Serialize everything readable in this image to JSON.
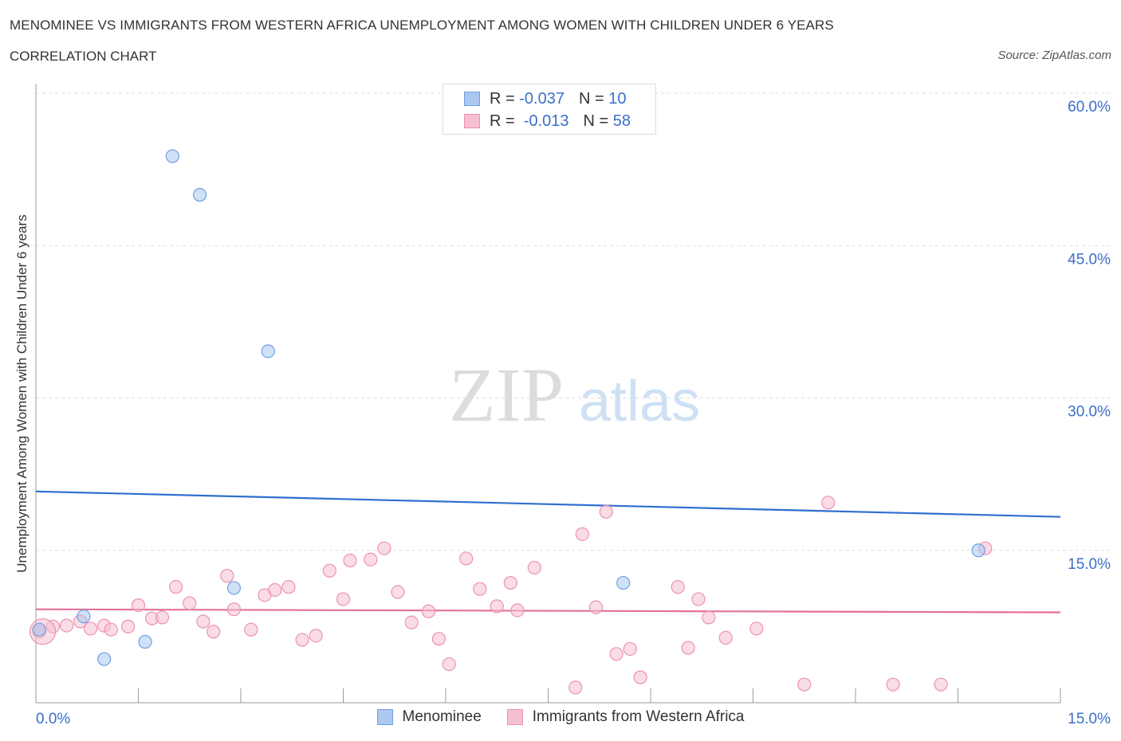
{
  "header": {
    "title": "MENOMINEE VS IMMIGRANTS FROM WESTERN AFRICA UNEMPLOYMENT AMONG WOMEN WITH CHILDREN UNDER 6 YEARS",
    "subtitle": "CORRELATION CHART",
    "source": "Source: ZipAtlas.com"
  },
  "watermark": {
    "zip": "ZIP",
    "atlas": "atlas"
  },
  "legend": {
    "rows": [
      {
        "r_label": "R =",
        "r_value": "-0.037",
        "n_label": "N =",
        "n_value": "10"
      },
      {
        "r_label": "R =",
        "r_value": "-0.013",
        "n_label": "N =",
        "n_value": "58"
      }
    ]
  },
  "colors": {
    "menominee_fill": "#aac8f0",
    "menominee_stroke": "#6f9fe0",
    "menominee_line": "#2f6fd0",
    "immigrants_fill": "#f6bfd0",
    "immigrants_stroke": "#eb93b0",
    "immigrants_line": "#e3709a",
    "axis_label_blue": "#3b6fc9"
  },
  "chart_data": {
    "type": "scatter",
    "title": "MENOMINEE VS IMMIGRANTS FROM WESTERN AFRICA UNEMPLOYMENT AMONG WOMEN WITH CHILDREN UNDER 6 YEARS",
    "subtitle": "CORRELATION CHART",
    "xlabel": "",
    "ylabel": "Unemployment Among Women with Children Under 6 years",
    "xlim": [
      0,
      15
    ],
    "ylim": [
      0,
      60
    ],
    "x_tick_labels": [
      "0.0%",
      "15.0%"
    ],
    "y_tick_values": [
      15,
      30,
      45,
      60
    ],
    "y_tick_labels": [
      "15.0%",
      "30.0%",
      "45.0%",
      "60.0%"
    ],
    "grid": true,
    "legend_position": "bottom-center",
    "series": [
      {
        "name": "Menominee",
        "r": -0.037,
        "n": 10,
        "points": [
          [
            0.05,
            7.2
          ],
          [
            0.7,
            8.5
          ],
          [
            1.0,
            4.3
          ],
          [
            1.6,
            6.0
          ],
          [
            2.0,
            53.8
          ],
          [
            2.4,
            50.0
          ],
          [
            2.9,
            11.3
          ],
          [
            3.4,
            34.6
          ],
          [
            8.6,
            11.8
          ],
          [
            13.8,
            15.0
          ]
        ],
        "trend": [
          [
            0,
            20.8
          ],
          [
            15,
            18.3
          ]
        ]
      },
      {
        "name": "Immigrants from Western Africa",
        "r": -0.013,
        "n": 58,
        "points": [
          [
            0.05,
            7.0
          ],
          [
            0.25,
            7.5
          ],
          [
            0.45,
            7.6
          ],
          [
            0.65,
            8.0
          ],
          [
            0.8,
            7.3
          ],
          [
            1.0,
            7.6
          ],
          [
            1.1,
            7.2
          ],
          [
            1.35,
            7.5
          ],
          [
            1.5,
            9.6
          ],
          [
            1.7,
            8.3
          ],
          [
            1.85,
            8.4
          ],
          [
            2.05,
            11.4
          ],
          [
            2.25,
            9.8
          ],
          [
            2.45,
            8.0
          ],
          [
            2.6,
            7.0
          ],
          [
            2.8,
            12.5
          ],
          [
            2.9,
            9.2
          ],
          [
            3.15,
            7.2
          ],
          [
            3.35,
            10.6
          ],
          [
            3.5,
            11.1
          ],
          [
            3.7,
            11.4
          ],
          [
            3.9,
            6.2
          ],
          [
            4.1,
            6.6
          ],
          [
            4.3,
            13.0
          ],
          [
            4.5,
            10.2
          ],
          [
            4.6,
            14.0
          ],
          [
            4.9,
            14.1
          ],
          [
            5.1,
            15.2
          ],
          [
            5.3,
            10.9
          ],
          [
            5.5,
            7.9
          ],
          [
            5.75,
            9.0
          ],
          [
            5.9,
            6.3
          ],
          [
            6.05,
            3.8
          ],
          [
            6.3,
            14.2
          ],
          [
            6.5,
            11.2
          ],
          [
            6.75,
            9.5
          ],
          [
            6.95,
            11.8
          ],
          [
            7.05,
            9.1
          ],
          [
            7.3,
            13.3
          ],
          [
            7.9,
            1.5
          ],
          [
            8.0,
            16.6
          ],
          [
            8.2,
            9.4
          ],
          [
            8.35,
            18.8
          ],
          [
            8.5,
            4.8
          ],
          [
            8.7,
            5.3
          ],
          [
            8.85,
            2.5
          ],
          [
            9.4,
            11.4
          ],
          [
            9.55,
            5.4
          ],
          [
            9.7,
            10.2
          ],
          [
            9.85,
            8.4
          ],
          [
            10.1,
            6.4
          ],
          [
            10.55,
            7.3
          ],
          [
            11.25,
            1.8
          ],
          [
            11.6,
            19.7
          ],
          [
            12.55,
            1.8
          ],
          [
            13.25,
            1.8
          ],
          [
            13.9,
            15.2
          ],
          [
            0.1,
            7.0
          ]
        ],
        "trend": [
          [
            0,
            9.2
          ],
          [
            15,
            8.9
          ]
        ]
      }
    ]
  }
}
